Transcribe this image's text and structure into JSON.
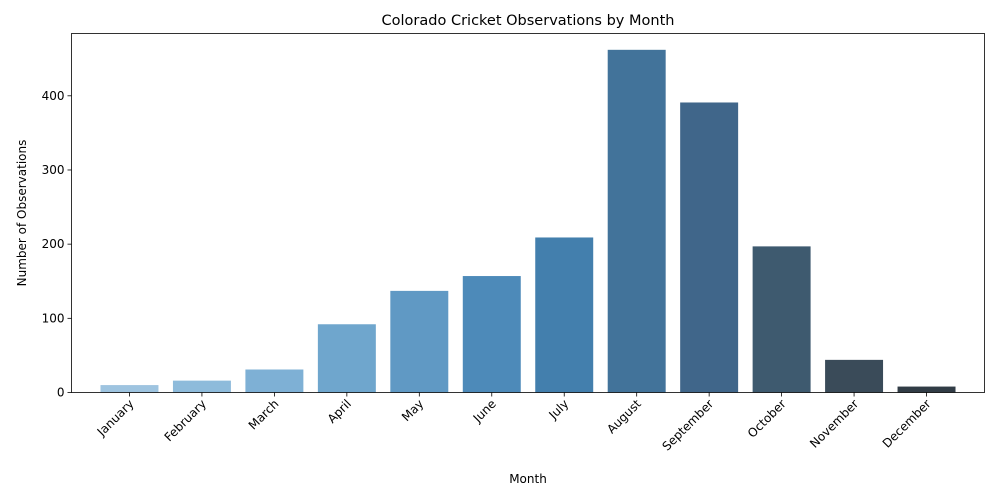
{
  "chart_data": {
    "type": "bar",
    "title": "Colorado Cricket Observations by Month",
    "xlabel": "Month",
    "ylabel": "Number of Observations",
    "categories": [
      "January",
      "February",
      "March",
      "April",
      "May",
      "June",
      "July",
      "August",
      "September",
      "October",
      "November",
      "December"
    ],
    "values": [
      10,
      16,
      31,
      92,
      137,
      157,
      209,
      462,
      391,
      197,
      44,
      8
    ],
    "colors": [
      "#9ec4e0",
      "#8ebbdb",
      "#7eb0d5",
      "#6fa6cd",
      "#6099c4",
      "#4d8ab9",
      "#437fad",
      "#42739a",
      "#40668a",
      "#3e5a6f",
      "#3a4b59",
      "#313c46"
    ],
    "ylim": [
      0,
      484
    ],
    "yticks": [
      0,
      100,
      200,
      300,
      400
    ],
    "grid": false,
    "legend": "none"
  }
}
